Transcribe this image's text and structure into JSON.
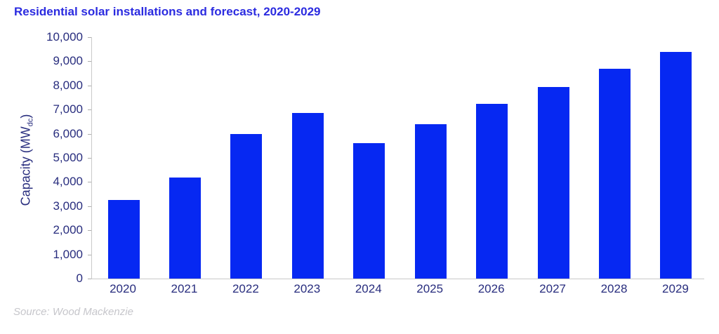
{
  "title": "Residential solar installations and forecast, 2020-2029",
  "source": "Source: Wood Mackenzie",
  "colors": {
    "bar": "#0628f2",
    "title_text": "#2b2be0",
    "axis_text": "#282d7e",
    "axis_line": "#c9c9c9",
    "source_text": "#c6c6cb"
  },
  "chart_data": {
    "type": "bar",
    "title": "Residential solar installations and forecast, 2020-2029",
    "categories": [
      "2020",
      "2021",
      "2022",
      "2023",
      "2024",
      "2025",
      "2026",
      "2027",
      "2028",
      "2029"
    ],
    "values": [
      3250,
      4200,
      6000,
      6850,
      5600,
      6400,
      7250,
      7950,
      8700,
      9400
    ],
    "xlabel": "",
    "ylabel": "Capacity (MW_dc)",
    "ylabel_parts": {
      "main": "Capacity (MW",
      "sub": "dc",
      "end": ")"
    },
    "ylim": [
      0,
      10000
    ],
    "y_tick_values": [
      0,
      1000,
      2000,
      3000,
      4000,
      5000,
      6000,
      7000,
      8000,
      9000,
      10000
    ],
    "y_tick_labels": [
      "0",
      "1,000",
      "2,000",
      "3,000",
      "4,000",
      "5,000",
      "6,000",
      "7,000",
      "8,000",
      "9,000",
      "10,000"
    ],
    "grid": false,
    "legend": false,
    "bar_color": "#0628f2",
    "source": "Source: Wood Mackenzie"
  }
}
